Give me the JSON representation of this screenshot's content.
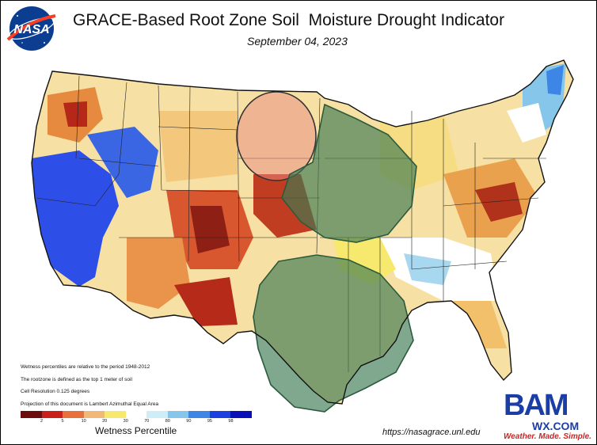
{
  "header": {
    "logo_text": "NASA",
    "title": "GRACE-Based Root Zone Soil  Moisture Drought Indicator",
    "date": "September 04, 2023"
  },
  "notes": [
    "Wetness percentiles are relative to the period 1948-2012",
    "The rootzone is defined as the top 1 meter of soil",
    "Cell Resolution 0.125 degrees",
    "Projection of this document is Lambert Azimuthal Equal Area"
  ],
  "legend": {
    "label": "Wetness Percentile",
    "ticks": [
      "2",
      "5",
      "10",
      "20",
      "30",
      "70",
      "80",
      "90",
      "95",
      "98"
    ],
    "colors": [
      "#6e0d0d",
      "#c9201a",
      "#e8703a",
      "#f2b877",
      "#f7e86e",
      "#ffffff",
      "#cdeef6",
      "#86c6ea",
      "#3d86e6",
      "#1b3fe0",
      "#0a10b8"
    ]
  },
  "overlays": [
    {
      "name": "red-ellipse",
      "color": "#e88a82"
    },
    {
      "name": "midwest-green-region",
      "color": "#3c7a52"
    },
    {
      "name": "texas-green-region",
      "color": "#3c7a52"
    }
  ],
  "footer": {
    "url": "https://nasagrace.unl.edu",
    "brand_big": "BAM",
    "brand_wx": "WX.COM",
    "brand_tag": "Weather. Made. Simple."
  },
  "palette": {
    "border": "#1a1a1a",
    "state_lines": "#222222"
  }
}
